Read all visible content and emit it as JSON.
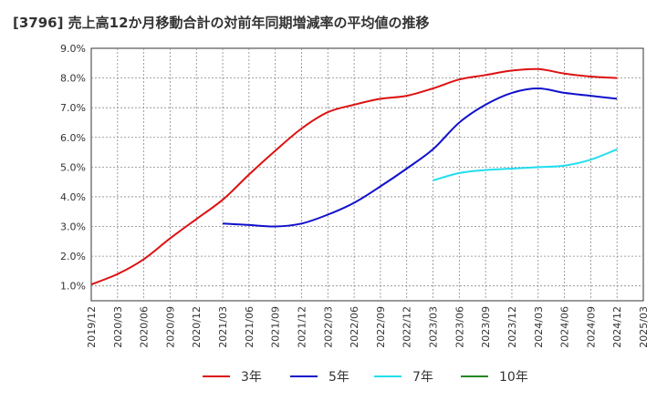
{
  "chart_data": {
    "type": "line",
    "title": "[3796]  売上高12か月移動合計の対前年同期増減率の平均値の推移",
    "xlabel": "",
    "ylabel": "",
    "x_tick_labels": [
      "2019/12",
      "2020/03",
      "2020/06",
      "2020/09",
      "2020/12",
      "2021/03",
      "2021/06",
      "2021/09",
      "2021/12",
      "2022/03",
      "2022/06",
      "2022/09",
      "2022/12",
      "2023/03",
      "2023/06",
      "2023/09",
      "2023/12",
      "2024/03",
      "2024/06",
      "2024/09",
      "2024/12",
      "2025/03"
    ],
    "y_tick_labels": [
      "1.0%",
      "2.0%",
      "3.0%",
      "4.0%",
      "5.0%",
      "6.0%",
      "7.0%",
      "8.0%",
      "9.0%"
    ],
    "ylim": [
      0.5,
      9.0
    ],
    "grid": true,
    "legend_position": "bottom",
    "colors": {
      "3年": "#dd1111",
      "5年": "#1010cc",
      "7年": "#22ddee",
      "10年": "#228822"
    },
    "series": [
      {
        "name": "3年",
        "color": "#dd1111",
        "points": [
          [
            "2019/12",
            1.05
          ],
          [
            "2020/03",
            1.4
          ],
          [
            "2020/06",
            1.9
          ],
          [
            "2020/09",
            2.6
          ],
          [
            "2020/12",
            3.25
          ],
          [
            "2021/03",
            3.9
          ],
          [
            "2021/06",
            4.75
          ],
          [
            "2021/09",
            5.55
          ],
          [
            "2021/12",
            6.3
          ],
          [
            "2022/03",
            6.85
          ],
          [
            "2022/06",
            7.1
          ],
          [
            "2022/09",
            7.3
          ],
          [
            "2022/12",
            7.4
          ],
          [
            "2023/03",
            7.65
          ],
          [
            "2023/06",
            7.95
          ],
          [
            "2023/09",
            8.1
          ],
          [
            "2023/12",
            8.25
          ],
          [
            "2024/03",
            8.3
          ],
          [
            "2024/06",
            8.15
          ],
          [
            "2024/09",
            8.05
          ],
          [
            "2024/12",
            8.0
          ]
        ]
      },
      {
        "name": "5年",
        "color": "#1010cc",
        "points": [
          [
            "2021/03",
            3.1
          ],
          [
            "2021/06",
            3.05
          ],
          [
            "2021/09",
            3.0
          ],
          [
            "2021/12",
            3.1
          ],
          [
            "2022/03",
            3.4
          ],
          [
            "2022/06",
            3.8
          ],
          [
            "2022/09",
            4.35
          ],
          [
            "2022/12",
            4.95
          ],
          [
            "2023/03",
            5.6
          ],
          [
            "2023/06",
            6.5
          ],
          [
            "2023/09",
            7.1
          ],
          [
            "2023/12",
            7.5
          ],
          [
            "2024/03",
            7.65
          ],
          [
            "2024/06",
            7.5
          ],
          [
            "2024/09",
            7.4
          ],
          [
            "2024/12",
            7.3
          ]
        ]
      },
      {
        "name": "7年",
        "color": "#22ddee",
        "points": [
          [
            "2023/03",
            4.55
          ],
          [
            "2023/06",
            4.8
          ],
          [
            "2023/09",
            4.9
          ],
          [
            "2023/12",
            4.95
          ],
          [
            "2024/03",
            5.0
          ],
          [
            "2024/06",
            5.05
          ],
          [
            "2024/09",
            5.25
          ],
          [
            "2024/12",
            5.6
          ]
        ]
      },
      {
        "name": "10年",
        "color": "#228822",
        "points": []
      }
    ]
  }
}
